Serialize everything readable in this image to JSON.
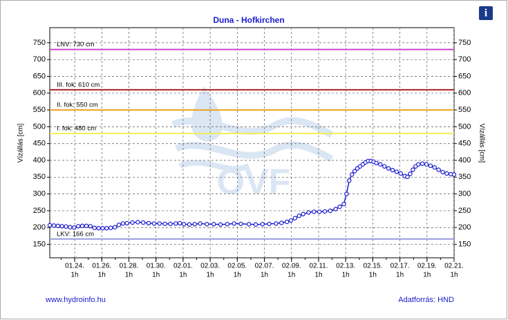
{
  "chart_data": {
    "type": "line",
    "title": "Duna - Hofkirchen",
    "ylabel": "Vízállás [cm]",
    "y2label": "Vízállás [cm]",
    "info_icon": "i",
    "watermark": "OVF",
    "footer_left": "www.hydroinfo.hu",
    "footer_right": "Adatforrás: HND",
    "xlim": [
      22.2,
      52.04
    ],
    "ylim": [
      110,
      795
    ],
    "yticks": [
      150,
      200,
      250,
      300,
      350,
      400,
      450,
      500,
      550,
      600,
      650,
      700,
      750
    ],
    "xtick_time_label": "1h",
    "xticks": [
      {
        "value": 24.04,
        "label": "01.24."
      },
      {
        "value": 26.04,
        "label": "01.26."
      },
      {
        "value": 28.04,
        "label": "01.28."
      },
      {
        "value": 30.04,
        "label": "01.30."
      },
      {
        "value": 32.04,
        "label": "02.01."
      },
      {
        "value": 34.04,
        "label": "02.03."
      },
      {
        "value": 36.04,
        "label": "02.05."
      },
      {
        "value": 38.04,
        "label": "02.07."
      },
      {
        "value": 40.04,
        "label": "02.09."
      },
      {
        "value": 42.04,
        "label": "02.11."
      },
      {
        "value": 44.04,
        "label": "02.13."
      },
      {
        "value": 46.04,
        "label": "02.15."
      },
      {
        "value": 48.04,
        "label": "02.17."
      },
      {
        "value": 50.04,
        "label": "02.19."
      },
      {
        "value": 52.04,
        "label": "02.21."
      }
    ],
    "grid": true,
    "thresholds": [
      {
        "value": 730,
        "label": "LNV: 730 cm",
        "color": "#cc44cc"
      },
      {
        "value": 610,
        "label": "III. fok: 610 cm",
        "color": "#aa2222"
      },
      {
        "value": 550,
        "label": "II. fok: 550 cm",
        "color": "#f0a020"
      },
      {
        "value": 480,
        "label": "I. fok: 480 cm",
        "color": "#eeee55"
      },
      {
        "value": 166,
        "label": "LKV: 166 cm",
        "color": "#9999dd"
      }
    ],
    "series": [
      {
        "name": "Vízállás",
        "color": "#1a1acc",
        "x": [
          22.2,
          22.5,
          22.8,
          23.1,
          23.4,
          23.7,
          24.0,
          24.3,
          24.6,
          24.9,
          25.2,
          25.5,
          25.8,
          26.1,
          26.4,
          26.7,
          27.0,
          27.3,
          27.6,
          27.9,
          28.3,
          28.7,
          29.1,
          29.5,
          29.9,
          30.3,
          30.7,
          31.1,
          31.5,
          31.8,
          32.1,
          32.5,
          32.9,
          33.3,
          33.8,
          34.3,
          34.8,
          35.3,
          35.8,
          36.3,
          36.9,
          37.4,
          37.9,
          38.4,
          38.9,
          39.3,
          39.7,
          40.0,
          40.3,
          40.6,
          40.9,
          41.3,
          41.7,
          42.1,
          42.5,
          42.9,
          43.3,
          43.6,
          43.9,
          44.1,
          44.3,
          44.5,
          44.7,
          44.9,
          45.1,
          45.3,
          45.5,
          45.7,
          45.9,
          46.1,
          46.3,
          46.6,
          46.9,
          47.2,
          47.5,
          47.8,
          48.1,
          48.4,
          48.6,
          48.8,
          49.0,
          49.2,
          49.4,
          49.7,
          50.0,
          50.3,
          50.6,
          50.9,
          51.2,
          51.5,
          51.8,
          52.04
        ],
        "values": [
          207,
          206,
          205,
          204,
          203,
          201,
          200,
          204,
          205,
          205,
          204,
          199,
          198,
          198,
          198,
          199,
          201,
          208,
          212,
          213,
          215,
          216,
          215,
          213,
          212,
          212,
          211,
          211,
          212,
          213,
          210,
          209,
          210,
          212,
          210,
          210,
          209,
          210,
          212,
          211,
          210,
          209,
          210,
          211,
          212,
          214,
          217,
          221,
          228,
          235,
          240,
          245,
          247,
          247,
          248,
          250,
          255,
          262,
          270,
          300,
          340,
          358,
          368,
          376,
          382,
          388,
          394,
          398,
          398,
          396,
          392,
          388,
          382,
          376,
          371,
          366,
          361,
          353,
          351,
          360,
          372,
          382,
          388,
          390,
          388,
          384,
          379,
          372,
          365,
          361,
          359,
          358
        ]
      }
    ]
  }
}
